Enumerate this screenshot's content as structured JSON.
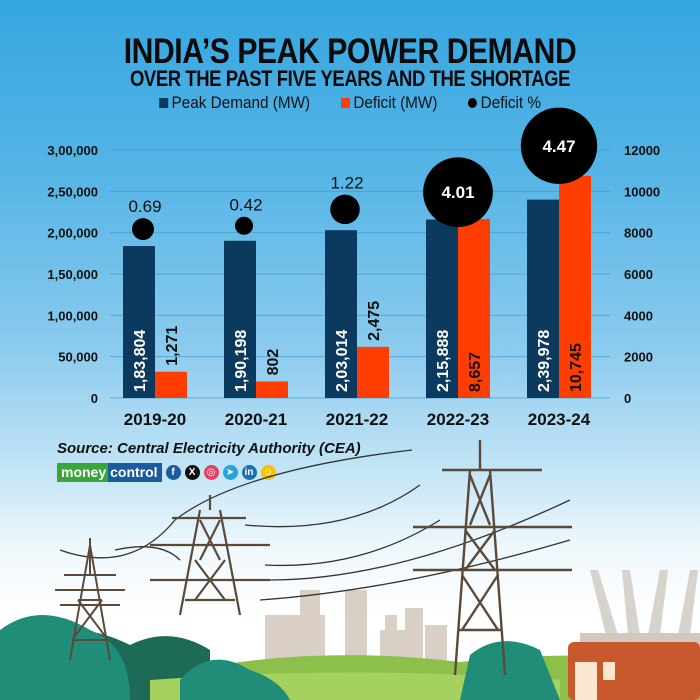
{
  "header": {
    "title": "INDIA’S PEAK POWER DEMAND",
    "subtitle": "OVER THE PAST FIVE YEARS AND THE SHORTAGE"
  },
  "legend": [
    {
      "label": "Peak Demand (MW)",
      "color": "#0b3a5e"
    },
    {
      "label": "Deficit (MW)",
      "color": "#ff3d00"
    },
    {
      "label": "Deficit %",
      "color": "#000000"
    }
  ],
  "chart_data": {
    "type": "bar",
    "title": "INDIA’S PEAK POWER DEMAND OVER THE PAST FIVE YEARS AND THE SHORTAGE",
    "categories": [
      "2019-20",
      "2020-21",
      "2021-22",
      "2022-23",
      "2023-24"
    ],
    "series": [
      {
        "name": "Peak Demand (MW)",
        "axis": "left",
        "color": "#0b3a5e",
        "values": [
          183804,
          190198,
          203014,
          215888,
          239978
        ],
        "labels": [
          "1,83,804",
          "1,90,198",
          "2,03,014",
          "2,15,888",
          "2,39,978"
        ]
      },
      {
        "name": "Deficit (MW)",
        "axis": "right",
        "color": "#ff3d00",
        "values": [
          1271,
          802,
          2475,
          8657,
          10745
        ],
        "labels": [
          "1,271",
          "802",
          "2,475",
          "8,657",
          "10,745"
        ]
      },
      {
        "name": "Deficit %",
        "type": "bubble",
        "color": "#000000",
        "values": [
          0.69,
          0.42,
          1.22,
          4.01,
          4.47
        ],
        "labels": [
          "0.69",
          "0.42",
          "1.22",
          "4.01",
          "4.47"
        ]
      }
    ],
    "left_axis": {
      "range": [
        0,
        300000
      ],
      "ticks": [
        0,
        50000,
        100000,
        150000,
        200000,
        250000,
        300000
      ],
      "tick_labels": [
        "0",
        "50,000",
        "1,00,000",
        "1,50,000",
        "2,00,000",
        "2,50,000",
        "3,00,000"
      ]
    },
    "right_axis": {
      "range": [
        0,
        12000
      ],
      "ticks": [
        0,
        2000,
        4000,
        6000,
        8000,
        10000,
        12000
      ],
      "tick_labels": [
        "0",
        "2000",
        "4000",
        "6000",
        "8000",
        "10000",
        "12000"
      ]
    },
    "grid": true,
    "legend_position": "top-center"
  },
  "footer": {
    "source": "Source: Central Electricity Authority (CEA)",
    "brand_part1": "money",
    "brand_part2": "control",
    "social": [
      {
        "name": "facebook",
        "glyph": "f",
        "color": "#1a5c9e"
      },
      {
        "name": "x",
        "glyph": "X",
        "color": "#111111"
      },
      {
        "name": "instagram",
        "glyph": "◎",
        "color": "#e4405f"
      },
      {
        "name": "telegram",
        "glyph": "➤",
        "color": "#2aa3dc"
      },
      {
        "name": "linkedin",
        "glyph": "in",
        "color": "#1a6fb5"
      },
      {
        "name": "snapchat",
        "glyph": "☺",
        "color": "#f5c400"
      }
    ]
  }
}
